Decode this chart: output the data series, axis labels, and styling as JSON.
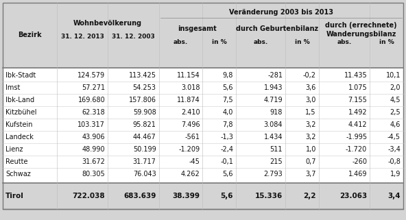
{
  "rows": [
    [
      "Ibk-Stadt",
      "124.579",
      "113.425",
      "11.154",
      "9,8",
      "-281",
      "-0,2",
      "11.435",
      "10,1"
    ],
    [
      "Imst",
      "57.271",
      "54.253",
      "3.018",
      "5,6",
      "1.943",
      "3,6",
      "1.075",
      "2,0"
    ],
    [
      "Ibk-Land",
      "169.680",
      "157.806",
      "11.874",
      "7,5",
      "4.719",
      "3,0",
      "7.155",
      "4,5"
    ],
    [
      "Kitzbühel",
      "62.318",
      "59.908",
      "2.410",
      "4,0",
      "918",
      "1,5",
      "1.492",
      "2,5"
    ],
    [
      "Kufstein",
      "103.317",
      "95.821",
      "7.496",
      "7,8",
      "3.084",
      "3,2",
      "4.412",
      "4,6"
    ],
    [
      "Landeck",
      "43.906",
      "44.467",
      "-561",
      "-1,3",
      "1.434",
      "3,2",
      "-1.995",
      "-4,5"
    ],
    [
      "Lienz",
      "48.990",
      "50.199",
      "-1.209",
      "-2,4",
      "511",
      "1,0",
      "-1.720",
      "-3,4"
    ],
    [
      "Reutte",
      "31.672",
      "31.717",
      "-45",
      "-0,1",
      "215",
      "0,7",
      "-260",
      "-0,8"
    ],
    [
      "Schwaz",
      "80.305",
      "76.043",
      "4.262",
      "5,6",
      "2.793",
      "3,7",
      "1.469",
      "1,9"
    ]
  ],
  "total_row": [
    "Tirol",
    "722.038",
    "683.639",
    "38.399",
    "5,6",
    "15.336",
    "2,2",
    "23.063",
    "3,4"
  ],
  "bg_header": "#d4d4d4",
  "bg_body": "#ffffff",
  "bg_total": "#d4d4d4",
  "text_color": "#111111",
  "font_size": 7.0,
  "header_font_size": 7.0
}
